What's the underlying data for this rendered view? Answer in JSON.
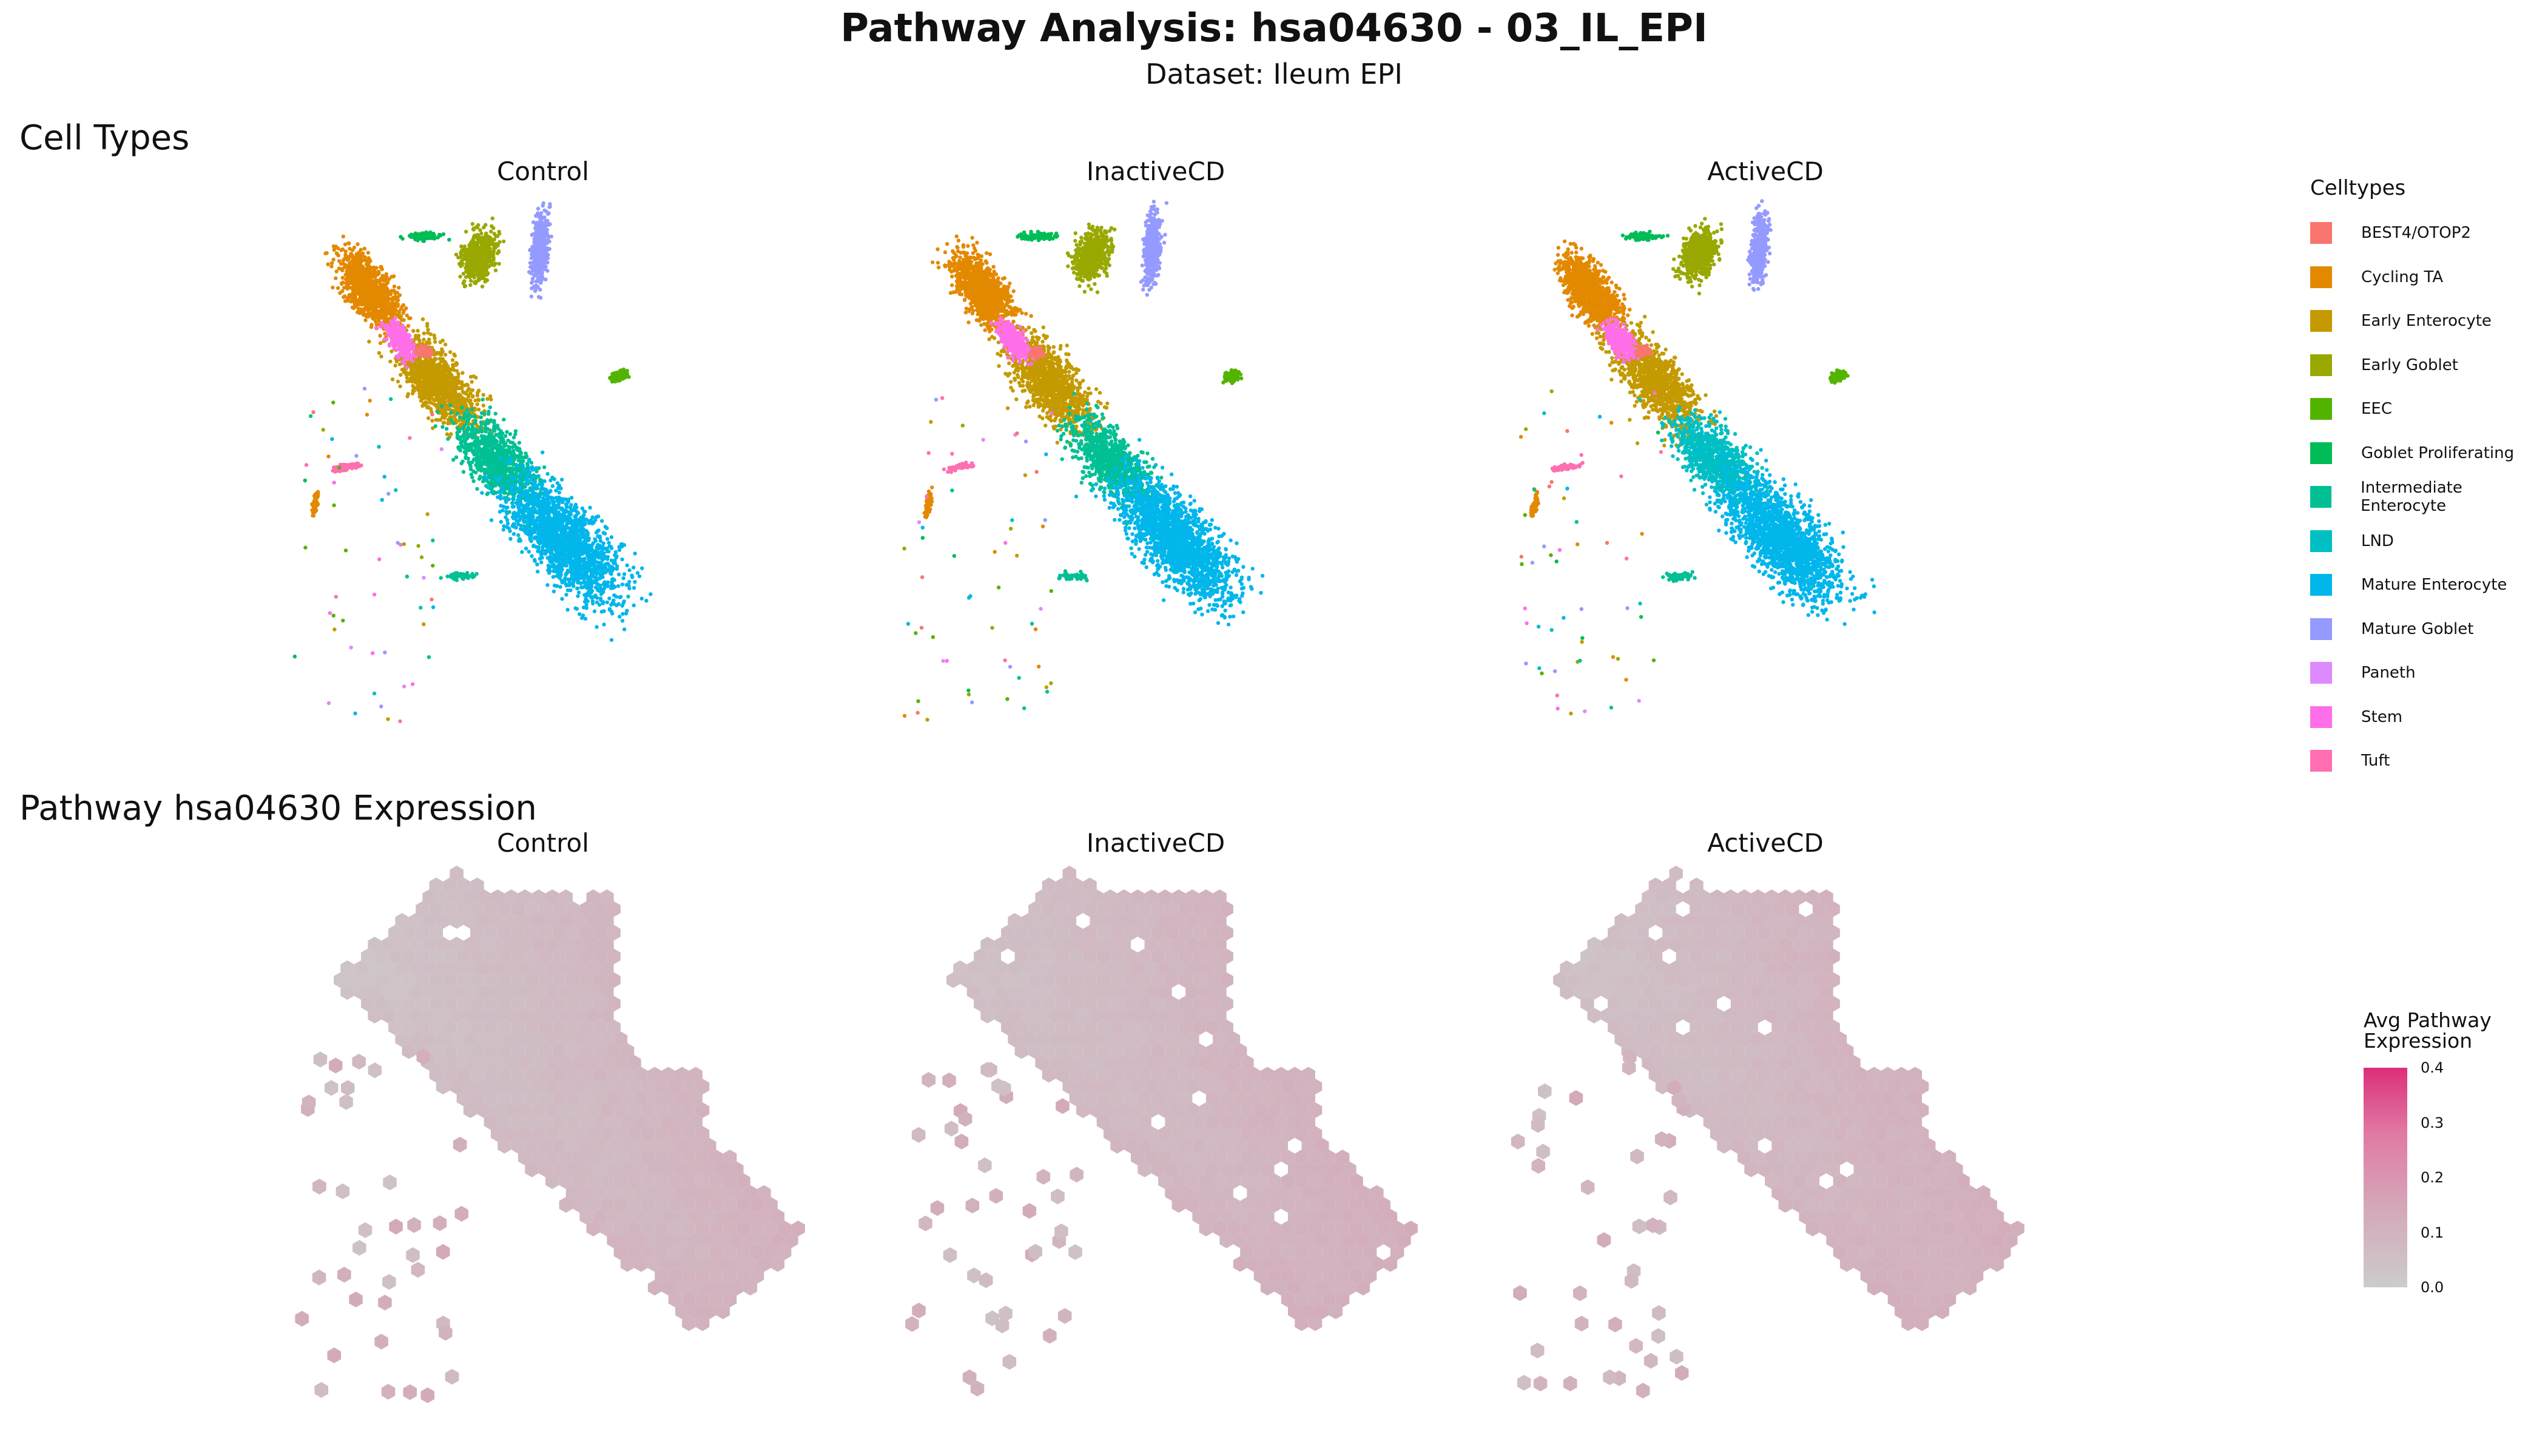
{
  "header": {
    "title": "Pathway Analysis: hsa04630 - 03_IL_EPI",
    "subtitle": "Dataset: Ileum EPI"
  },
  "sections": {
    "cell_types": "Cell Types",
    "pathway": "Pathway hsa04630 Expression"
  },
  "facets": [
    "Control",
    "InactiveCD",
    "ActiveCD"
  ],
  "celltype_legend": {
    "title": "Celltypes",
    "items": [
      {
        "label": "BEST4/OTOP2",
        "color": "#F8766D"
      },
      {
        "label": "Cycling TA",
        "color": "#E38900"
      },
      {
        "label": "Early Enterocyte",
        "color": "#C49A00"
      },
      {
        "label": "Early Goblet",
        "color": "#99A800"
      },
      {
        "label": "EEC",
        "color": "#53B400"
      },
      {
        "label": "Goblet Proliferating",
        "color": "#00BC56"
      },
      {
        "label": "Intermediate Enterocyte",
        "color": "#00C094"
      },
      {
        "label": "LND",
        "color": "#00BFC4"
      },
      {
        "label": "Mature Enterocyte",
        "color": "#00B6EB"
      },
      {
        "label": "Mature Goblet",
        "color": "#949AFF"
      },
      {
        "label": "Paneth",
        "color": "#DD8AFF"
      },
      {
        "label": "Stem",
        "color": "#FF6EE9"
      },
      {
        "label": "Tuft",
        "color": "#FF6FB1"
      }
    ]
  },
  "expression_legend": {
    "title_line1": "Avg Pathway",
    "title_line2": "Expression",
    "ticks": [
      "0.4",
      "0.3",
      "0.2",
      "0.1",
      "0.0"
    ],
    "tick_values": [
      0.4,
      0.3,
      0.2,
      0.1,
      0.0
    ],
    "low_color": "#cccccc",
    "high_color": "#dc2f7a",
    "range": [
      0.0,
      0.4
    ]
  },
  "chart_data": [
    {
      "type": "scatter",
      "title": "Cell Types",
      "facets": [
        "Control",
        "InactiveCD",
        "ActiveCD"
      ],
      "color_by": "Celltypes",
      "grid": false,
      "legend_position": "right",
      "clusters_per_facet": {
        "Control": [
          "Cycling TA",
          "Early Enterocyte",
          "Stem",
          "Early Goblet",
          "Mature Goblet",
          "EEC",
          "Mature Enterocyte",
          "Intermediate Enterocyte",
          "Tuft"
        ],
        "InactiveCD": [
          "Cycling TA",
          "Early Enterocyte",
          "Stem",
          "Early Goblet",
          "Mature Goblet",
          "EEC",
          "Mature Enterocyte",
          "Intermediate Enterocyte",
          "Tuft"
        ],
        "ActiveCD": [
          "Cycling TA",
          "Early Enterocyte",
          "Stem",
          "Early Goblet",
          "Mature Goblet",
          "EEC",
          "Mature Enterocyte",
          "LND",
          "Intermediate Enterocyte",
          "Tuft"
        ]
      }
    },
    {
      "type": "heatmap",
      "title": "Pathway hsa04630 Expression",
      "facets": [
        "Control",
        "InactiveCD",
        "ActiveCD"
      ],
      "value_label": "Avg Pathway Expression",
      "scale_range": [
        0.0,
        0.4
      ],
      "typical_values": {
        "Control": [
          0.0,
          0.12
        ],
        "InactiveCD": [
          0.0,
          0.15
        ],
        "ActiveCD": [
          0.0,
          0.15
        ]
      },
      "grid": false
    }
  ]
}
